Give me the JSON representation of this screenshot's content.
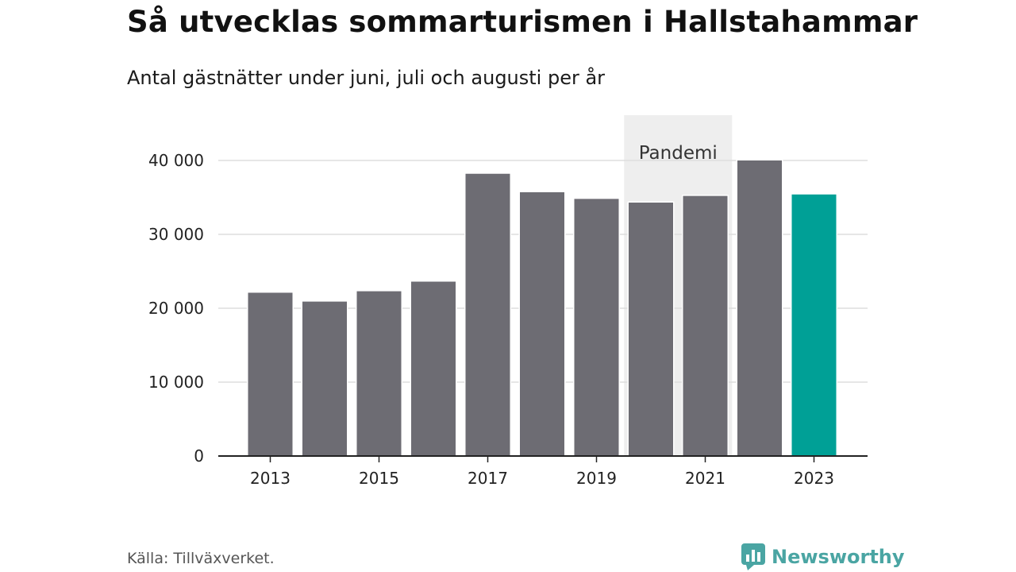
{
  "title": "Så utvecklas sommarturismen i Hallstahammar",
  "subtitle": "Antal gästnätter under juni, juli och augusti per år",
  "source": "Källa: Tillväxverket.",
  "brand": {
    "name": "Newsworthy",
    "icon": "newsworthy-logo-icon",
    "color": "#4aa5a3"
  },
  "chart_data": {
    "type": "bar",
    "categories": [
      "2013",
      "2014",
      "2015",
      "2016",
      "2017",
      "2018",
      "2019",
      "2020",
      "2021",
      "2022",
      "2023"
    ],
    "values": [
      22100,
      20900,
      22300,
      23600,
      38200,
      35700,
      34800,
      34300,
      35200,
      40000,
      35400
    ],
    "x_tick_labels": [
      "2013",
      "2015",
      "2017",
      "2019",
      "2021",
      "2023"
    ],
    "y_ticks": [
      0,
      10000,
      20000,
      30000,
      40000
    ],
    "y_tick_labels": [
      "0",
      "10 000",
      "20 000",
      "30 000",
      "40 000"
    ],
    "ylim": [
      0,
      40000
    ],
    "xlabel": "",
    "ylabel": "",
    "grid": true,
    "colors": {
      "default": "#6d6c73",
      "highlight": "#00a096",
      "shade": "#eeeeee",
      "grid": "#dddddd",
      "axis": "#222222"
    },
    "highlight_category": "2023",
    "annotations": [
      {
        "label": "Pandemi",
        "from_category": "2020",
        "to_category": "2021"
      }
    ]
  }
}
